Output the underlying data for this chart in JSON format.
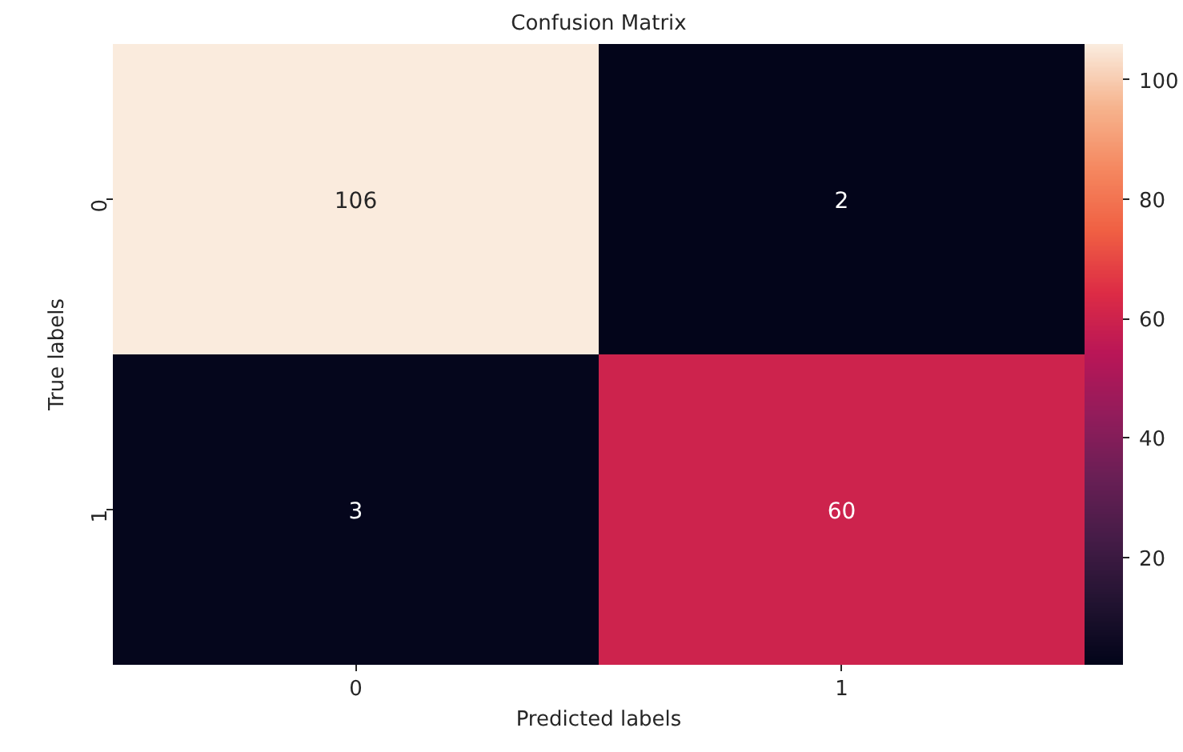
{
  "chart_data": {
    "type": "heatmap",
    "title": "Confusion Matrix",
    "xlabel": "Predicted labels",
    "ylabel": "True labels",
    "categories": [
      "0",
      "1"
    ],
    "y_categories": [
      "0",
      "1"
    ],
    "cells": [
      [
        106,
        2
      ],
      [
        3,
        60
      ]
    ],
    "clim": [
      2,
      106
    ],
    "cticks": [
      20,
      40,
      60,
      80,
      100
    ],
    "data_labels": true
  }
}
